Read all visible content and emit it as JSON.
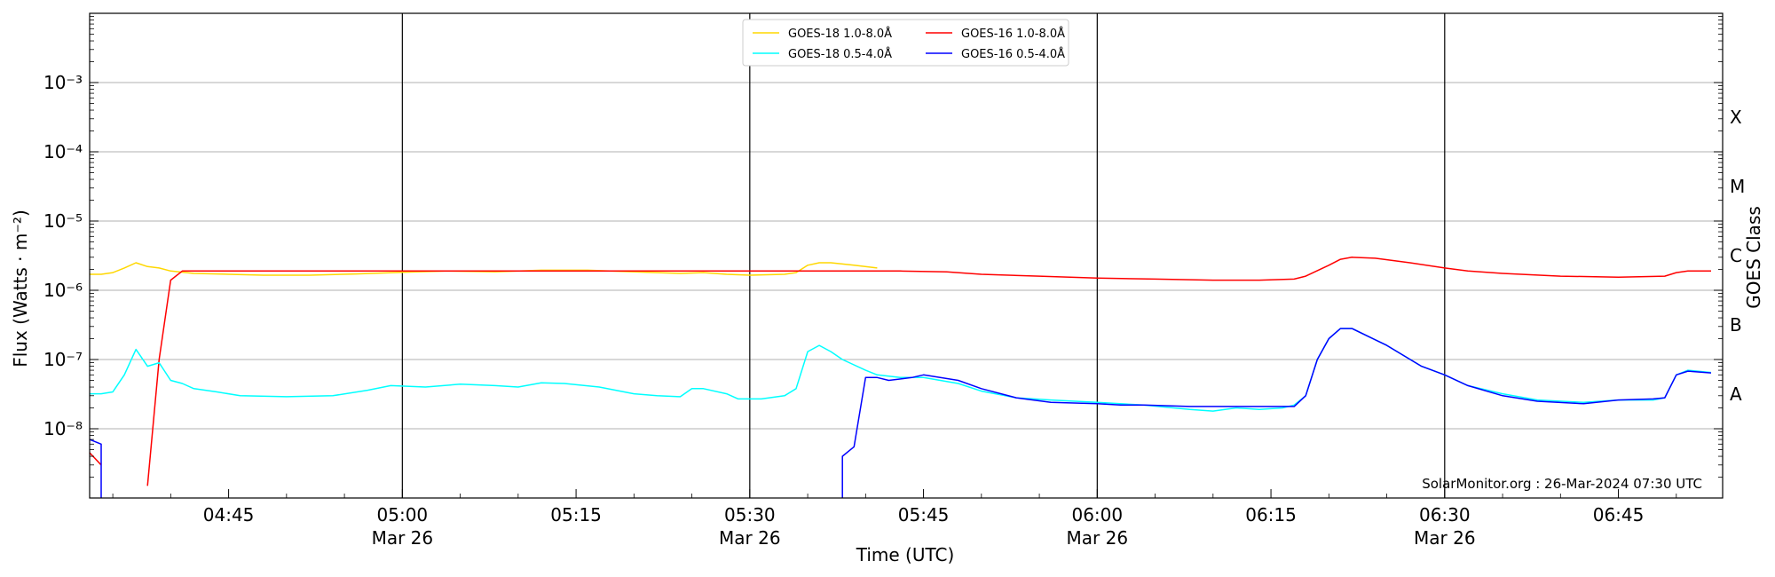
{
  "chart_data": {
    "type": "line",
    "title": "",
    "xlabel": "Time (UTC)",
    "ylabel": "Flux (Watts · m⁻²)",
    "y2label": "GOES Class",
    "y_scale": "log",
    "xlim": [
      "04:33",
      "06:54"
    ],
    "ylim": [
      1e-09,
      0.01
    ],
    "grid": "horizontal",
    "legend_position": "top-center",
    "x_ticks": [
      {
        "t": "04:45",
        "label": "04:45",
        "sub": ""
      },
      {
        "t": "05:00",
        "label": "05:00",
        "sub": "Mar 26"
      },
      {
        "t": "05:15",
        "label": "05:15",
        "sub": ""
      },
      {
        "t": "05:30",
        "label": "05:30",
        "sub": "Mar 26"
      },
      {
        "t": "05:45",
        "label": "05:45",
        "sub": ""
      },
      {
        "t": "06:00",
        "label": "06:00",
        "sub": "Mar 26"
      },
      {
        "t": "06:15",
        "label": "06:15",
        "sub": ""
      },
      {
        "t": "06:30",
        "label": "06:30",
        "sub": "Mar 26"
      },
      {
        "t": "06:45",
        "label": "06:45",
        "sub": ""
      }
    ],
    "day_lines": [
      "05:00",
      "05:30",
      "06:00",
      "06:30"
    ],
    "y_ticks": [
      {
        "exp": -8,
        "label": "10⁻⁸"
      },
      {
        "exp": -7,
        "label": "10⁻⁷"
      },
      {
        "exp": -6,
        "label": "10⁻⁶"
      },
      {
        "exp": -5,
        "label": "10⁻⁵"
      },
      {
        "exp": -4,
        "label": "10⁻⁴"
      },
      {
        "exp": -3,
        "label": "10⁻³"
      }
    ],
    "goes_classes": [
      {
        "label": "A",
        "exp": -7.5
      },
      {
        "label": "B",
        "exp": -6.5
      },
      {
        "label": "C",
        "exp": -5.5
      },
      {
        "label": "M",
        "exp": -4.5
      },
      {
        "label": "X",
        "exp": -3.5
      }
    ],
    "series": [
      {
        "name": "GOES-18 1.0-8.0Å",
        "color": "#FFD700",
        "points": [
          [
            "04:33",
            1.7e-06
          ],
          [
            "04:34",
            1.7e-06
          ],
          [
            "04:35",
            1.8e-06
          ],
          [
            "04:36",
            2.1e-06
          ],
          [
            "04:37",
            2.5e-06
          ],
          [
            "04:38",
            2.2e-06
          ],
          [
            "04:39",
            2.1e-06
          ],
          [
            "04:40",
            1.9e-06
          ],
          [
            "04:42",
            1.75e-06
          ],
          [
            "04:45",
            1.7e-06
          ],
          [
            "04:48",
            1.65e-06
          ],
          [
            "04:52",
            1.65e-06
          ],
          [
            "04:56",
            1.72e-06
          ],
          [
            "05:00",
            1.82e-06
          ],
          [
            "05:04",
            1.9e-06
          ],
          [
            "05:08",
            1.85e-06
          ],
          [
            "05:12",
            1.95e-06
          ],
          [
            "05:16",
            1.95e-06
          ],
          [
            "05:20",
            1.85e-06
          ],
          [
            "05:24",
            1.75e-06
          ],
          [
            "05:26",
            1.8e-06
          ],
          [
            "05:28",
            1.7e-06
          ],
          [
            "05:30",
            1.65e-06
          ],
          [
            "05:33",
            1.7e-06
          ],
          [
            "05:34",
            1.8e-06
          ],
          [
            "05:35",
            2.3e-06
          ],
          [
            "05:36",
            2.5e-06
          ],
          [
            "05:37",
            2.5e-06
          ],
          [
            "05:39",
            2.3e-06
          ],
          [
            "05:41",
            2.1e-06
          ]
        ]
      },
      {
        "name": "GOES-16 1.0-8.0Å",
        "color": "#FF0000",
        "points": [
          [
            "04:33",
            4.5e-09
          ],
          [
            "04:34",
            3e-09
          ],
          null,
          [
            "04:38",
            1.5e-09
          ],
          [
            "04:39",
            1e-07
          ],
          [
            "04:40",
            1.4e-06
          ],
          [
            "04:41",
            1.9e-06
          ],
          [
            "05:41",
            1.9e-06
          ],
          [
            "05:43",
            1.9e-06
          ],
          [
            "05:47",
            1.85e-06
          ],
          [
            "05:50",
            1.7e-06
          ],
          [
            "05:55",
            1.6e-06
          ],
          [
            "06:00",
            1.5e-06
          ],
          [
            "06:05",
            1.45e-06
          ],
          [
            "06:10",
            1.4e-06
          ],
          [
            "06:14",
            1.4e-06
          ],
          [
            "06:17",
            1.45e-06
          ],
          [
            "06:18",
            1.6e-06
          ],
          [
            "06:20",
            2.3e-06
          ],
          [
            "06:21",
            2.8e-06
          ],
          [
            "06:22",
            3e-06
          ],
          [
            "06:24",
            2.9e-06
          ],
          [
            "06:27",
            2.5e-06
          ],
          [
            "06:30",
            2.1e-06
          ],
          [
            "06:32",
            1.9e-06
          ],
          [
            "06:35",
            1.75e-06
          ],
          [
            "06:40",
            1.6e-06
          ],
          [
            "06:45",
            1.55e-06
          ],
          [
            "06:49",
            1.6e-06
          ],
          [
            "06:50",
            1.8e-06
          ],
          [
            "06:51",
            1.9e-06
          ],
          [
            "06:53",
            1.9e-06
          ]
        ]
      },
      {
        "name": "GOES-18 0.5-4.0Å",
        "color": "#00FFFF",
        "points": [
          [
            "04:33",
            3.2e-08
          ],
          [
            "04:34",
            3.2e-08
          ],
          [
            "04:35",
            3.4e-08
          ],
          [
            "04:36",
            6e-08
          ],
          [
            "04:37",
            1.4e-07
          ],
          [
            "04:38",
            8e-08
          ],
          [
            "04:39",
            9e-08
          ],
          [
            "04:40",
            5e-08
          ],
          [
            "04:41",
            4.5e-08
          ],
          [
            "04:42",
            3.8e-08
          ],
          [
            "04:44",
            3.4e-08
          ],
          [
            "04:46",
            3e-08
          ],
          [
            "04:50",
            2.9e-08
          ],
          [
            "04:54",
            3e-08
          ],
          [
            "04:57",
            3.6e-08
          ],
          [
            "04:59",
            4.2e-08
          ],
          [
            "05:02",
            4e-08
          ],
          [
            "05:05",
            4.4e-08
          ],
          [
            "05:08",
            4.2e-08
          ],
          [
            "05:10",
            4e-08
          ],
          [
            "05:12",
            4.6e-08
          ],
          [
            "05:14",
            4.5e-08
          ],
          [
            "05:17",
            4e-08
          ],
          [
            "05:20",
            3.2e-08
          ],
          [
            "05:22",
            3e-08
          ],
          [
            "05:24",
            2.9e-08
          ],
          [
            "05:25",
            3.8e-08
          ],
          [
            "05:26",
            3.8e-08
          ],
          [
            "05:28",
            3.2e-08
          ],
          [
            "05:29",
            2.7e-08
          ],
          [
            "05:31",
            2.7e-08
          ],
          [
            "05:33",
            3e-08
          ],
          [
            "05:34",
            3.8e-08
          ],
          [
            "05:35",
            1.3e-07
          ],
          [
            "05:36",
            1.6e-07
          ],
          [
            "05:37",
            1.3e-07
          ],
          [
            "05:38",
            1e-07
          ],
          [
            "05:40",
            7e-08
          ],
          [
            "05:41",
            6e-08
          ],
          [
            "05:43",
            5.5e-08
          ],
          [
            "05:45",
            5.5e-08
          ],
          [
            "05:48",
            4.5e-08
          ],
          [
            "05:50",
            3.5e-08
          ],
          [
            "05:53",
            2.8e-08
          ],
          [
            "05:56",
            2.6e-08
          ],
          [
            "06:00",
            2.4e-08
          ],
          [
            "06:04",
            2.2e-08
          ],
          [
            "06:08",
            1.9e-08
          ],
          [
            "06:10",
            1.8e-08
          ],
          [
            "06:12",
            2e-08
          ],
          [
            "06:14",
            1.9e-08
          ],
          [
            "06:16",
            2e-08
          ],
          [
            "06:17",
            2.2e-08
          ],
          [
            "06:18",
            3e-08
          ],
          [
            "06:19",
            1e-07
          ],
          [
            "06:20",
            2e-07
          ],
          [
            "06:21",
            2.8e-07
          ],
          [
            "06:22",
            2.8e-07
          ],
          [
            "06:25",
            1.6e-07
          ],
          [
            "06:28",
            8e-08
          ],
          [
            "06:30",
            6e-08
          ],
          [
            "06:32",
            4.2e-08
          ],
          [
            "06:35",
            3.2e-08
          ],
          [
            "06:38",
            2.6e-08
          ],
          [
            "06:42",
            2.4e-08
          ],
          [
            "06:45",
            2.6e-08
          ],
          [
            "06:48",
            2.6e-08
          ],
          [
            "06:49",
            2.8e-08
          ],
          [
            "06:50",
            6e-08
          ],
          [
            "06:51",
            7e-08
          ],
          [
            "06:53",
            6.5e-08
          ]
        ]
      },
      {
        "name": "GOES-16 0.5-4.0Å",
        "color": "#0000FF",
        "points": [
          [
            "04:33",
            7e-09
          ],
          [
            "04:34",
            6e-09
          ],
          [
            "04:34",
            1e-09
          ],
          null,
          [
            "05:38",
            1e-09
          ],
          [
            "05:38",
            4e-09
          ],
          [
            "05:39",
            5.5e-09
          ],
          [
            "05:40",
            5.5e-08
          ],
          [
            "05:41",
            5.5e-08
          ],
          [
            "05:42",
            5e-08
          ],
          [
            "05:44",
            5.5e-08
          ],
          [
            "05:45",
            6e-08
          ],
          [
            "05:48",
            5e-08
          ],
          [
            "05:50",
            3.8e-08
          ],
          [
            "05:53",
            2.8e-08
          ],
          [
            "05:56",
            2.4e-08
          ],
          [
            "06:00",
            2.3e-08
          ],
          [
            "06:02",
            2.2e-08
          ],
          [
            "06:04",
            2.2e-08
          ],
          [
            "06:08",
            2.1e-08
          ],
          [
            "06:12",
            2.1e-08
          ],
          [
            "06:14",
            2.1e-08
          ],
          [
            "06:17",
            2.1e-08
          ],
          [
            "06:18",
            3e-08
          ],
          [
            "06:19",
            1e-07
          ],
          [
            "06:20",
            2e-07
          ],
          [
            "06:21",
            2.8e-07
          ],
          [
            "06:22",
            2.8e-07
          ],
          [
            "06:25",
            1.6e-07
          ],
          [
            "06:28",
            8e-08
          ],
          [
            "06:30",
            6e-08
          ],
          [
            "06:32",
            4.2e-08
          ],
          [
            "06:35",
            3e-08
          ],
          [
            "06:38",
            2.5e-08
          ],
          [
            "06:42",
            2.3e-08
          ],
          [
            "06:45",
            2.6e-08
          ],
          [
            "06:48",
            2.7e-08
          ],
          [
            "06:49",
            2.8e-08
          ],
          [
            "06:50",
            6e-08
          ],
          [
            "06:51",
            6.8e-08
          ],
          [
            "06:53",
            6.4e-08
          ]
        ]
      }
    ],
    "annotation": "SolarMonitor.org : 26-Mar-2024 07:30 UTC"
  }
}
